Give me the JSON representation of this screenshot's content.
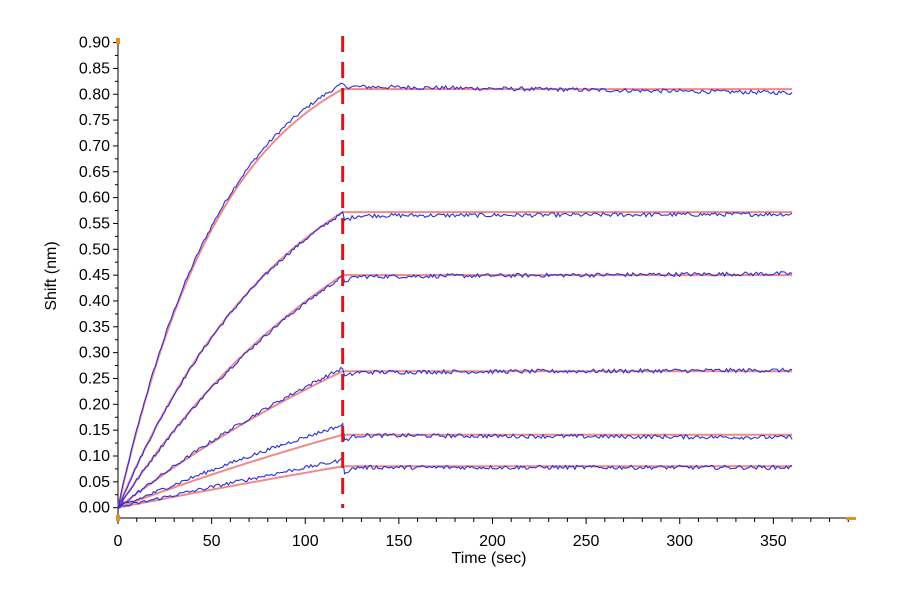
{
  "chart_data": {
    "type": "line",
    "xlabel": "Time (sec)",
    "ylabel": "Shift (nm)",
    "xlim": [
      0,
      392
    ],
    "ylim": [
      -0.02,
      0.905
    ],
    "x_ticks": [
      "0",
      "50",
      "100",
      "150",
      "200",
      "250",
      "300",
      "350"
    ],
    "y_ticks": [
      "0.00",
      "0.05",
      "0.10",
      "0.15",
      "0.20",
      "0.25",
      "0.30",
      "0.35",
      "0.40",
      "0.45",
      "0.50",
      "0.55",
      "0.60",
      "0.65",
      "0.70",
      "0.75",
      "0.80",
      "0.85",
      "0.90"
    ],
    "grid": false,
    "legend": "none",
    "association_end_time": 120,
    "end_time": 360,
    "marker_line": {
      "x": 120,
      "color": "#d9161c",
      "style": "dashed"
    },
    "colors": {
      "measured": "#2f2fd6",
      "fit": "#f08a8a",
      "marker": "#d9161c",
      "axis_marker": "#e8901a"
    },
    "series": [
      {
        "association_rate": 0.0175,
        "plateau_measured": 0.815,
        "plateau_fit": 0.81,
        "end_drift": -0.012
      },
      {
        "association_rate": 0.011,
        "plateau_measured": 0.565,
        "plateau_fit": 0.572,
        "end_drift": 0.003
      },
      {
        "association_rate": 0.007,
        "plateau_measured": 0.447,
        "plateau_fit": 0.45,
        "end_drift": 0.006
      },
      {
        "association_rate": 0.004,
        "plateau_measured": 0.262,
        "plateau_fit": 0.264,
        "end_drift": 0.004
      },
      {
        "association_rate": 0.0025,
        "plateau_measured": 0.14,
        "plateau_fit": 0.141,
        "end_drift": -0.004
      },
      {
        "association_rate": 0.0012,
        "plateau_measured": 0.078,
        "plateau_fit": 0.08,
        "end_drift": 0.0
      }
    ],
    "peaks_at_switch": [
      0.82,
      0.57,
      0.447,
      0.27,
      0.16,
      0.092
    ]
  }
}
